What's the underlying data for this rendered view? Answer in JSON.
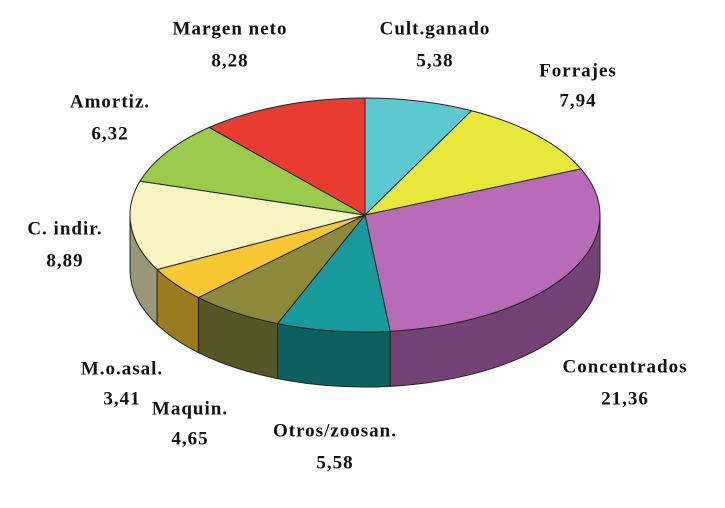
{
  "chart_data": {
    "type": "pie",
    "categories": [
      "Cult.ganado",
      "Forrajes",
      "Concentrados",
      "Otros/zoosan.",
      "Maquin.",
      "M.o.asal.",
      "C. indir.",
      "Amortiz.",
      "Margen neto"
    ],
    "values": [
      5.38,
      7.94,
      21.36,
      5.58,
      4.65,
      3.41,
      8.89,
      6.32,
      8.28
    ],
    "value_labels": [
      "5,38",
      "7,94",
      "21,36",
      "5,58",
      "4,65",
      "3,41",
      "8,89",
      "6,32",
      "8,28"
    ],
    "colors": [
      "#5cc8d2",
      "#e8e83c",
      "#b86cb8",
      "#169a9a",
      "#8a8a3a",
      "#f8c832",
      "#f8f4c2",
      "#9acb4a",
      "#e83c30"
    ]
  }
}
